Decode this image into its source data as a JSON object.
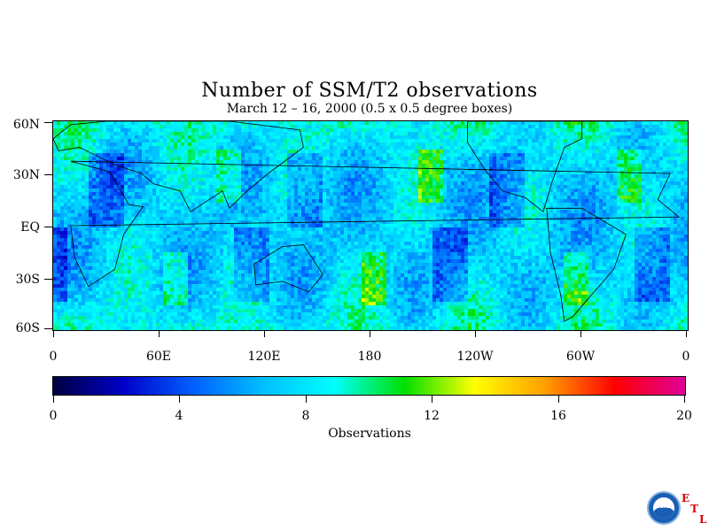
{
  "title": "Number of SSM/T2 observations",
  "subtitle": "March 12 – 16, 2000 (0.5 x 0.5 degree boxes)",
  "lat_labels": [
    "60N",
    "30N",
    "EQ",
    "30S",
    "60S"
  ],
  "lon_labels": [
    "0",
    "60E",
    "120E",
    "180",
    "120W",
    "60W",
    "0"
  ],
  "colorbar": {
    "title": "Observations",
    "ticks": [
      "0",
      "4",
      "8",
      "12",
      "16",
      "20"
    ],
    "range": [
      0,
      20
    ],
    "stops": [
      "#000040",
      "#0000c8",
      "#0060ff",
      "#00c0ff",
      "#00ffff",
      "#00e000",
      "#ffff00",
      "#ffa000",
      "#ff0000",
      "#e0009a"
    ]
  },
  "logo": {
    "name": "NOAA",
    "letters": [
      "E",
      "T",
      "L"
    ]
  }
}
